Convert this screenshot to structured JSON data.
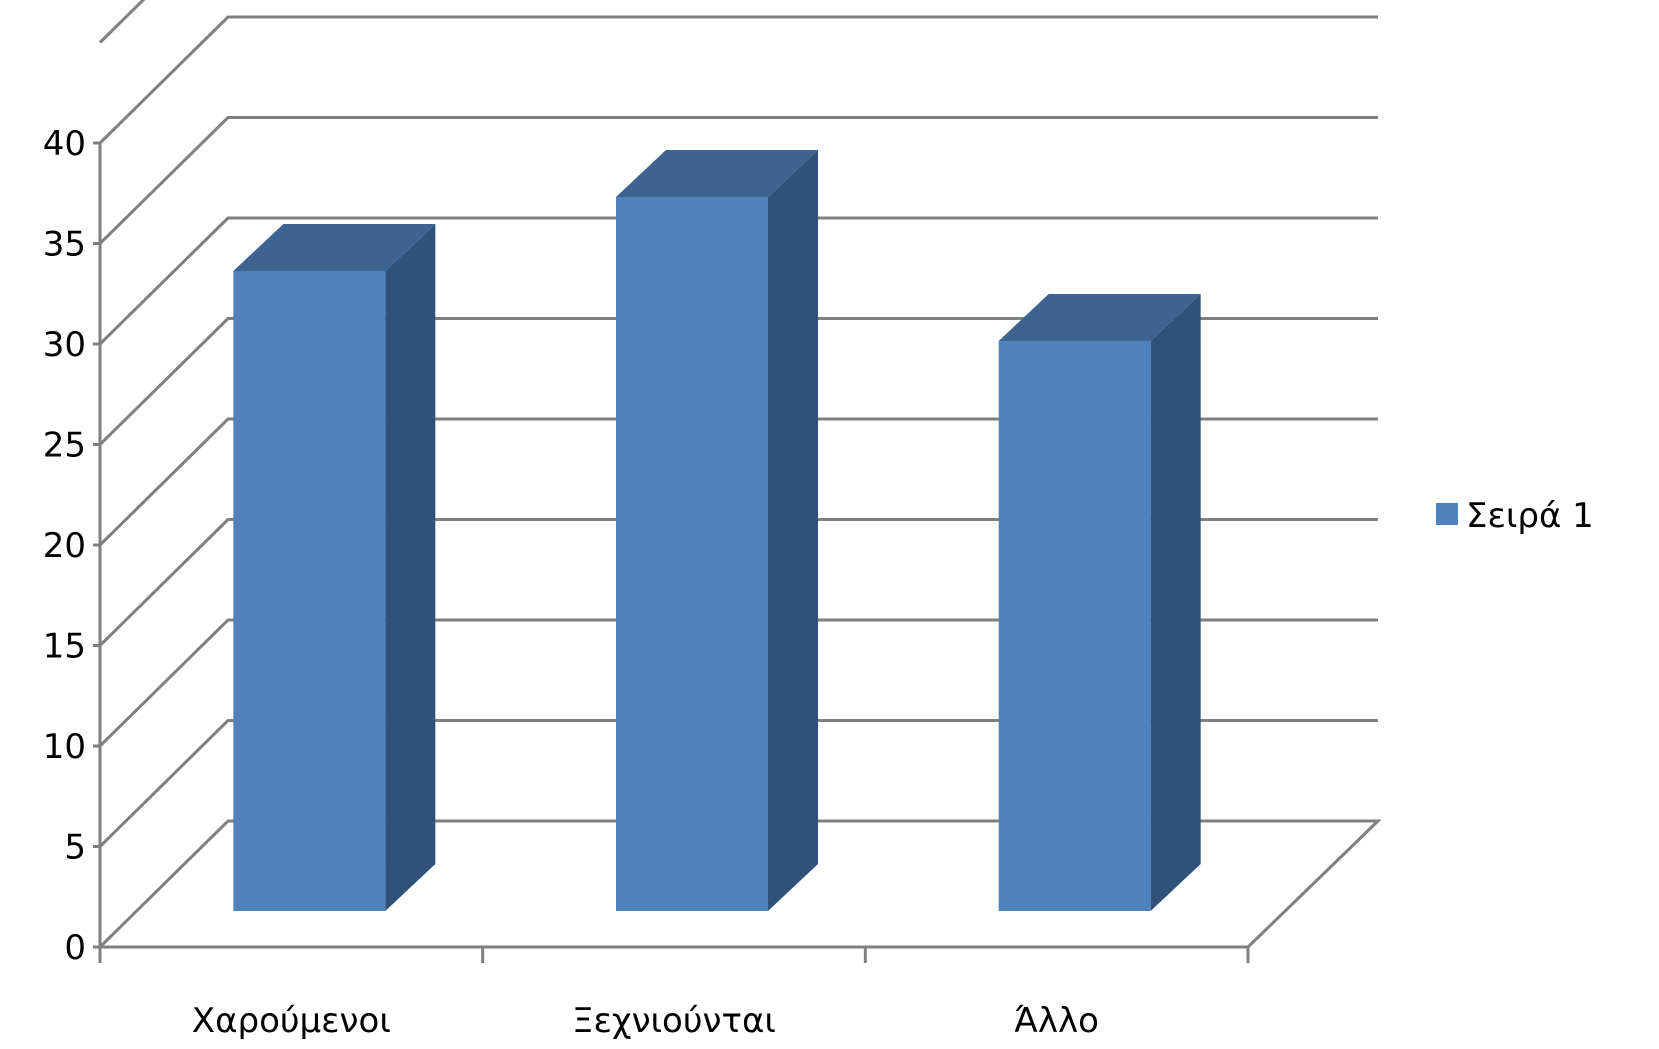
{
  "chart_data": {
    "type": "bar",
    "style": "3d-column",
    "categories": [
      "Χαρούμενοι",
      "Ξεχνιούνται",
      "Άλλο"
    ],
    "series": [
      {
        "name": "Σειρά 1",
        "values": [
          32,
          35.7,
          28.5
        ]
      }
    ],
    "ylim": [
      0,
      40
    ],
    "yticks": [
      "0",
      "5",
      "10",
      "15",
      "20",
      "25",
      "30",
      "35",
      "40"
    ],
    "grid": true,
    "legend": "right",
    "colors": {
      "front": "#4f81bd",
      "top": "#3d6391",
      "side": "#30527a",
      "grid": "#7f7f7f"
    }
  }
}
